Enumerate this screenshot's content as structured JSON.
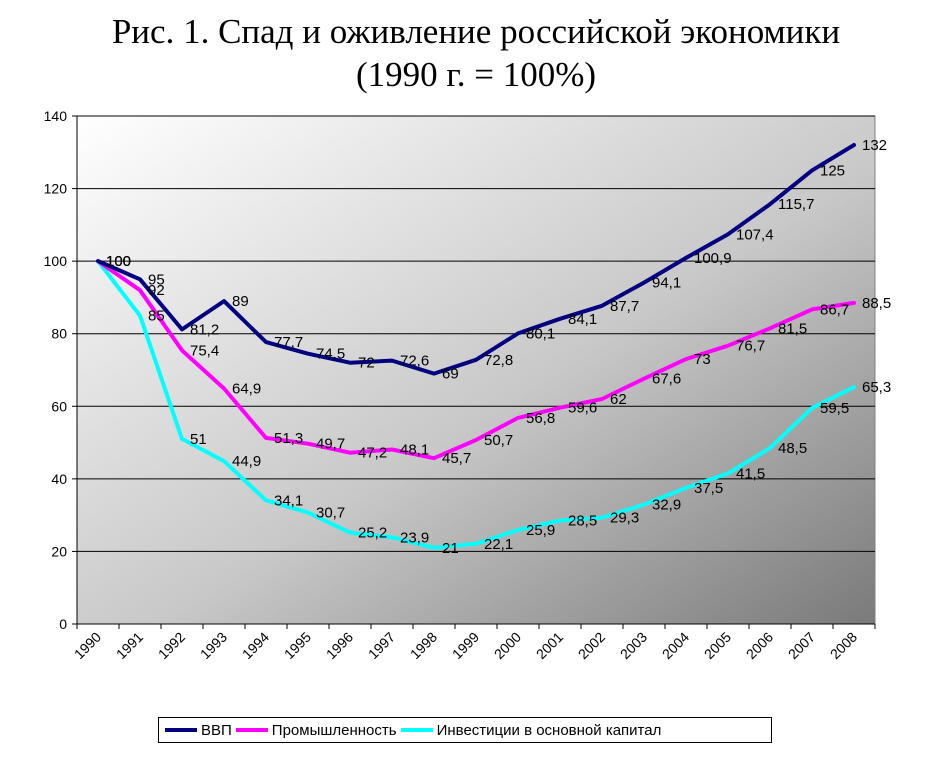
{
  "title_line1": "Рис. 1. Спад и оживление российской экономики",
  "title_line2": "(1990 г. = 100%)",
  "chart_data": {
    "type": "line",
    "categories": [
      "1990",
      "1991",
      "1992",
      "1993",
      "1994",
      "1995",
      "1996",
      "1997",
      "1998",
      "1999",
      "2000",
      "2001",
      "2002",
      "2003",
      "2004",
      "2005",
      "2006",
      "2007",
      "2008"
    ],
    "ylim": [
      0,
      140
    ],
    "yticks": [
      "0",
      "20",
      "40",
      "60",
      "80",
      "100",
      "120",
      "140"
    ],
    "grid": true,
    "legend_position": "bottom",
    "series": [
      {
        "name": "ВВП",
        "color": "#000080",
        "values": [
          100,
          95,
          81.2,
          89,
          77.7,
          74.5,
          72,
          72.6,
          69,
          72.8,
          80.1,
          84.1,
          87.7,
          94.1,
          100.9,
          107.4,
          115.7,
          125,
          132
        ],
        "labels": [
          "100",
          "95",
          "81,2",
          "89",
          "77,7",
          "74,5",
          "72",
          "72,6",
          "69",
          "72,8",
          "80,1",
          "84,1",
          "87,7",
          "94,1",
          "100,9",
          "107,4",
          "115,7",
          "125",
          "132"
        ]
      },
      {
        "name": "Промышленность",
        "color": "#ff00ff",
        "values": [
          100,
          92,
          75.4,
          64.9,
          51.3,
          49.7,
          47.2,
          48.1,
          45.7,
          50.7,
          56.8,
          59.6,
          62,
          67.6,
          73,
          76.7,
          81.5,
          86.7,
          88.5
        ],
        "labels": [
          "100",
          "92",
          "75,4",
          "64,9",
          "51,3",
          "49,7",
          "47,2",
          "48,1",
          "45,7",
          "50,7",
          "56,8",
          "59,6",
          "62",
          "67,6",
          "73",
          "76,7",
          "81,5",
          "86,7",
          "88,5"
        ]
      },
      {
        "name": "Инвестиции в основной капитал",
        "color": "#00ffff",
        "values": [
          100,
          85,
          51,
          44.9,
          34.1,
          30.7,
          25.2,
          23.9,
          21,
          22.1,
          25.9,
          28.5,
          29.3,
          32.9,
          37.5,
          41.5,
          48.5,
          59.5,
          65.3
        ],
        "labels": [
          "100",
          "85",
          "51",
          "44,9",
          "34,1",
          "30,7",
          "25,2",
          "23,9",
          "21",
          "22,1",
          "25,9",
          "28,5",
          "29,3",
          "32,9",
          "37,5",
          "41,5",
          "48,5",
          "59,5",
          "65,3"
        ]
      }
    ]
  }
}
